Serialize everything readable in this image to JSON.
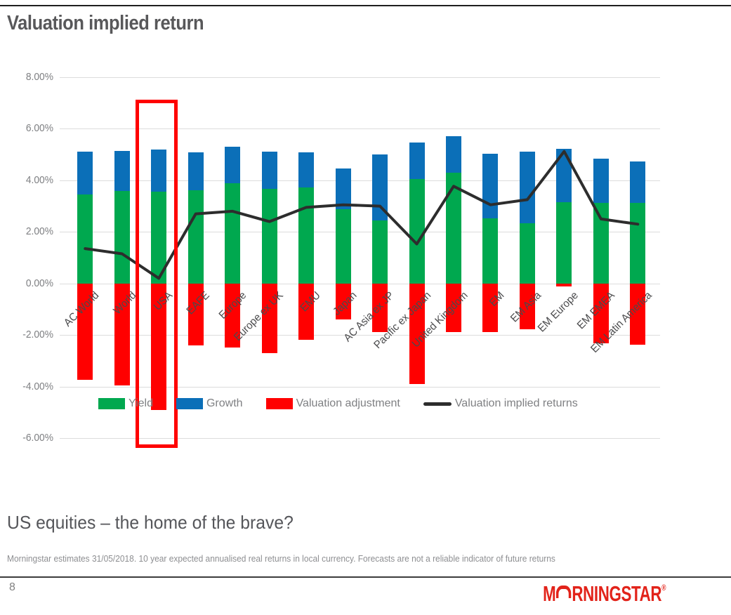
{
  "header": {
    "title": "Valuation implied return"
  },
  "subtitle": "US equities – the home of the brave?",
  "footnote": "Morningstar estimates 31/05/2018. 10 year expected annualised real returns in local currency.  Forecasts are not a reliable indicator of future returns",
  "footer": {
    "page_number": "8",
    "logo": {
      "m": "M",
      "rest": "RNINGSTAR",
      "registered": "®",
      "color": "#e2231a"
    }
  },
  "chart_data": {
    "type": "bar",
    "subtype": "stacked-bar-with-line",
    "title": "Valuation implied return",
    "categories": [
      "AC World",
      "World",
      "USA",
      "EAFE",
      "Europe",
      "Europe ex UK",
      "EMU",
      "Japan",
      "AC Asia ex JP",
      "Pacific ex Japan",
      "United Kingdom",
      "EM",
      "EM Asia",
      "EM Europe",
      "EM EMEA",
      "EM Latin America"
    ],
    "series": [
      {
        "name": "Yield",
        "type": "bar",
        "color": "#00a84f",
        "values": [
          3.45,
          3.58,
          3.55,
          3.62,
          3.88,
          3.68,
          3.72,
          2.88,
          2.45,
          4.05,
          4.3,
          2.52,
          2.33,
          3.16,
          3.13,
          3.12
        ]
      },
      {
        "name": "Growth",
        "type": "bar",
        "color": "#0b6fb8",
        "values": [
          1.67,
          1.57,
          1.65,
          1.46,
          1.42,
          1.42,
          1.36,
          1.57,
          2.55,
          1.42,
          1.41,
          2.52,
          2.78,
          2.07,
          1.7,
          1.6
        ]
      },
      {
        "name": "Valuation adjustment",
        "type": "bar",
        "color": "#ff0000",
        "values": [
          -3.75,
          -3.95,
          -4.9,
          -2.4,
          -2.48,
          -2.7,
          -2.2,
          -1.4,
          -1.9,
          -3.9,
          -1.9,
          -1.9,
          -1.78,
          -0.12,
          -2.32,
          -2.37
        ]
      },
      {
        "name": "Valuation implied returns",
        "type": "line",
        "color": "#2d2d2d",
        "values": [
          1.35,
          1.15,
          0.2,
          2.7,
          2.8,
          2.4,
          2.95,
          3.05,
          3.0,
          1.53,
          3.77,
          3.05,
          3.25,
          5.12,
          2.5,
          2.3
        ]
      }
    ],
    "ylim": [
      -6,
      8
    ],
    "ytick_step": 2,
    "yticks": [
      "8.00%",
      "6.00%",
      "4.00%",
      "2.00%",
      "0.00%",
      "-2.00%",
      "-4.00%",
      "-6.00%"
    ],
    "grid": true,
    "legend_position": "bottom",
    "highlight": {
      "category": "USA",
      "box_color": "#ff0000"
    }
  }
}
